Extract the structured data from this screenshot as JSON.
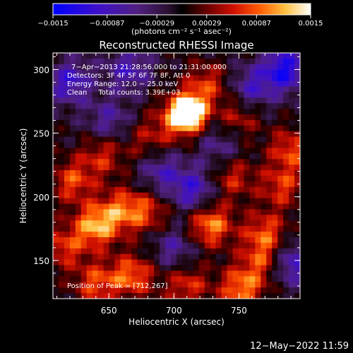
{
  "chart_data": {
    "type": "heatmap",
    "title": "Reconstructed RHESSI Image",
    "xlabel": "Heliocentric X (arcsec)",
    "ylabel": "Heliocentric Y (arcsec)",
    "xlim": [
      607,
      797
    ],
    "ylim": [
      120,
      313
    ],
    "xticks": [
      650,
      700,
      750
    ],
    "yticks": [
      150,
      200,
      250,
      300
    ],
    "colorbar": {
      "label": "(photons cm⁻² s⁻¹ asec⁻²)",
      "range": [
        -0.0015,
        0.0015
      ],
      "tick_labels": [
        "−0.0015",
        "−0.00087",
        "−0.00029",
        "0.00029",
        "0.00087",
        "0.0015"
      ],
      "tick_values": [
        -0.0015,
        -0.00087,
        -0.00029,
        0.00029,
        0.00087,
        0.0015
      ]
    },
    "annotations": {
      "time_range": "7−Apr−2013 21:28:56.000 to 21:31:00.000",
      "detectors": "Detectors: 3F 4F 5F 6F 7F 8F, Att 0",
      "energy": "Energy Range: 12.0 − 25.0 keV",
      "clean": "Clean     Total counts: 3.39E+03",
      "peak": "Position of Peak = [712,267]"
    },
    "peak": [
      712,
      267
    ],
    "sources": [
      {
        "x": 712,
        "y": 267,
        "amp": 1.0
      },
      {
        "x": 705,
        "y": 262,
        "amp": 0.7
      },
      {
        "x": 725,
        "y": 288,
        "amp": 0.5
      },
      {
        "x": 728,
        "y": 178,
        "amp": 0.75
      },
      {
        "x": 640,
        "y": 177,
        "amp": 0.8
      },
      {
        "x": 660,
        "y": 190,
        "amp": 0.55
      },
      {
        "x": 680,
        "y": 188,
        "amp": 0.45
      },
      {
        "x": 622,
        "y": 212,
        "amp": 0.55
      },
      {
        "x": 645,
        "y": 232,
        "amp": 0.45
      },
      {
        "x": 615,
        "y": 160,
        "amp": 0.5
      },
      {
        "x": 668,
        "y": 138,
        "amp": 0.65
      },
      {
        "x": 640,
        "y": 132,
        "amp": 0.55
      },
      {
        "x": 710,
        "y": 130,
        "amp": 0.5
      },
      {
        "x": 752,
        "y": 128,
        "amp": 0.7
      },
      {
        "x": 768,
        "y": 150,
        "amp": 0.5
      },
      {
        "x": 770,
        "y": 172,
        "amp": 0.55
      },
      {
        "x": 783,
        "y": 208,
        "amp": 0.5
      },
      {
        "x": 790,
        "y": 237,
        "amp": 0.55
      },
      {
        "x": 745,
        "y": 215,
        "amp": 0.45
      },
      {
        "x": 750,
        "y": 262,
        "amp": 0.4
      },
      {
        "x": 680,
        "y": 245,
        "amp": 0.35
      },
      {
        "x": 620,
        "y": 290,
        "amp": -0.6
      },
      {
        "x": 665,
        "y": 300,
        "amp": -0.5
      },
      {
        "x": 785,
        "y": 300,
        "amp": -0.8
      },
      {
        "x": 760,
        "y": 285,
        "amp": -0.5
      },
      {
        "x": 715,
        "y": 205,
        "amp": -0.6
      },
      {
        "x": 690,
        "y": 220,
        "amp": -0.45
      },
      {
        "x": 790,
        "y": 148,
        "amp": -0.6
      },
      {
        "x": 650,
        "y": 260,
        "amp": -0.4
      },
      {
        "x": 700,
        "y": 160,
        "amp": -0.4
      },
      {
        "x": 735,
        "y": 240,
        "amp": -0.35
      }
    ]
  },
  "footer": {
    "timestamp": "12−May−2022 11:59"
  }
}
